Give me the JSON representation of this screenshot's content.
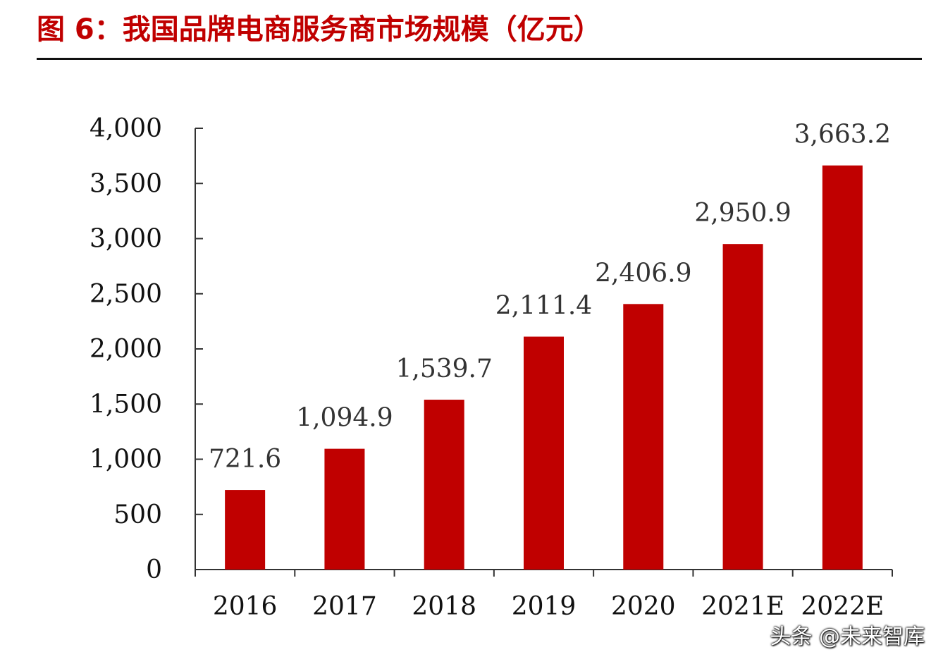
{
  "chart_data": {
    "type": "bar",
    "title": "图 6：我国品牌电商服务商市场规模（亿元）",
    "categories": [
      "2016",
      "2017",
      "2018",
      "2019",
      "2020",
      "2021E",
      "2022E"
    ],
    "values": [
      721.6,
      1094.9,
      1539.7,
      2111.4,
      2406.9,
      2950.9,
      3663.2
    ],
    "value_labels": [
      "721.6",
      "1,094.9",
      "1,539.7",
      "2,111.4",
      "2,406.9",
      "2,950.9",
      "3,663.2"
    ],
    "ylim": [
      0,
      4000
    ],
    "yticks": [
      0,
      500,
      1000,
      1500,
      2000,
      2500,
      3000,
      3500,
      4000
    ],
    "ytick_labels": [
      "0",
      "500",
      "1,000",
      "1,500",
      "2,000",
      "2,500",
      "3,000",
      "3,500",
      "4,000"
    ],
    "bar_color": "#c00000",
    "grid": false,
    "legend": "none"
  },
  "watermark": "头条 @未来智库"
}
